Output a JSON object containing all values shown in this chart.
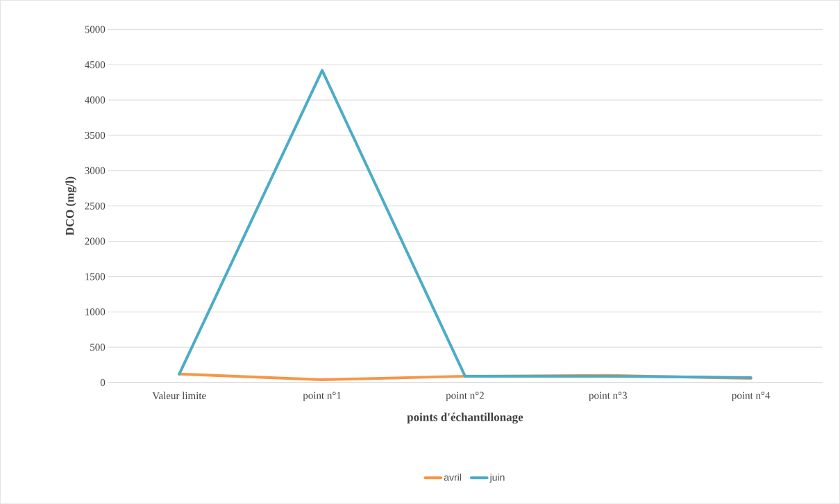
{
  "chart_data": {
    "type": "line",
    "xlabel": "points d'échantillonage",
    "ylabel": "DCO (mg/l)",
    "categories": [
      "Valeur limite",
      "point n°1",
      "point n°2",
      "point n°3",
      "point n°4"
    ],
    "series": [
      {
        "name": "avril",
        "color": "#f79646",
        "values": [
          120,
          40,
          90,
          100,
          60
        ]
      },
      {
        "name": "juin",
        "color": "#4bacc6",
        "values": [
          120,
          4420,
          90,
          90,
          70
        ]
      }
    ],
    "ylim": [
      0,
      5000
    ],
    "yticks": [
      0,
      500,
      1000,
      1500,
      2000,
      2500,
      3000,
      3500,
      4000,
      4500,
      5000
    ],
    "grid": "y",
    "legend": "bottom",
    "marker": "none",
    "line_style": "solid"
  }
}
